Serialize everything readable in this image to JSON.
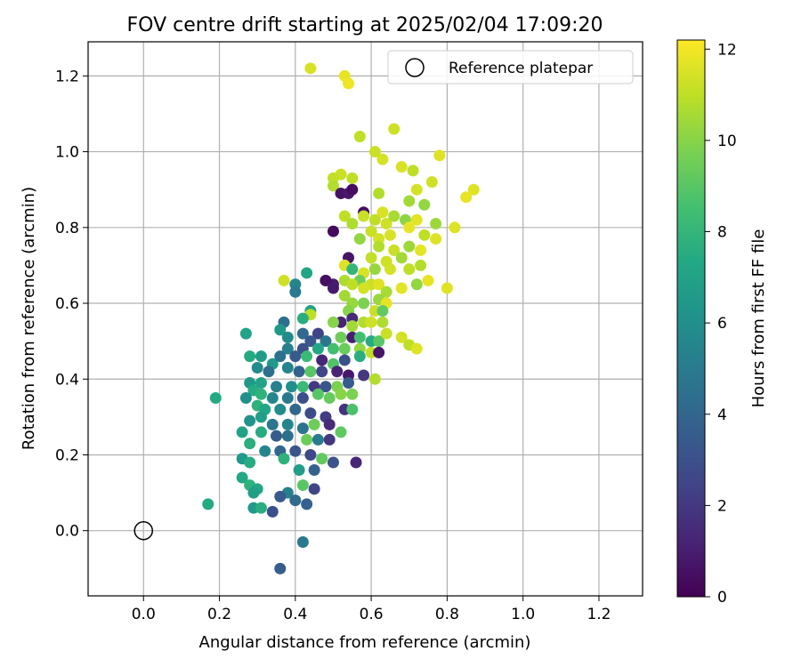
{
  "chart_data": {
    "type": "scatter",
    "title": "FOV centre drift starting at 2025/02/04 17:09:20",
    "xlabel": "Angular distance from reference (arcmin)",
    "ylabel": "Rotation from reference (arcmin)",
    "xlim": [
      -0.146,
      1.315
    ],
    "ylim": [
      -0.172,
      1.29
    ],
    "xticks": [
      "0.0",
      "0.2",
      "0.4",
      "0.6",
      "0.8",
      "1.0",
      "1.2"
    ],
    "yticks": [
      "0.0",
      "0.2",
      "0.4",
      "0.6",
      "0.8",
      "1.0",
      "1.2"
    ],
    "grid": true,
    "legend": {
      "placement": "top-right",
      "entries": [
        "Reference platepar"
      ]
    },
    "reference": {
      "x": 0.0,
      "y": 0.0
    },
    "colorbar": {
      "label": "Hours from first FF file",
      "range": [
        0,
        12.2
      ],
      "ticks": [
        "0",
        "2",
        "4",
        "6",
        "8",
        "10",
        "12"
      ],
      "colormap": "viridis"
    },
    "points": [
      [
        0.44,
        1.22,
        11.5
      ],
      [
        0.53,
        1.2,
        11.8
      ],
      [
        0.54,
        1.18,
        11.9
      ],
      [
        0.57,
        1.04,
        11.0
      ],
      [
        0.61,
        1.0,
        11.2
      ],
      [
        0.66,
        1.06,
        11.3
      ],
      [
        0.63,
        0.98,
        11.4
      ],
      [
        0.68,
        0.96,
        11.5
      ],
      [
        0.71,
        0.95,
        11.0
      ],
      [
        0.78,
        0.99,
        11.6
      ],
      [
        0.52,
        0.94,
        11.2
      ],
      [
        0.5,
        0.93,
        11.1
      ],
      [
        0.55,
        0.93,
        11.0
      ],
      [
        0.5,
        0.91,
        10.8
      ],
      [
        0.87,
        0.9,
        11.6
      ],
      [
        0.85,
        0.88,
        11.8
      ],
      [
        0.76,
        0.92,
        11.3
      ],
      [
        0.72,
        0.9,
        11.4
      ],
      [
        0.7,
        0.87,
        10.5
      ],
      [
        0.74,
        0.86,
        10.2
      ],
      [
        0.62,
        0.89,
        10.8
      ],
      [
        0.52,
        0.89,
        0.6
      ],
      [
        0.54,
        0.89,
        0.8
      ],
      [
        0.55,
        0.9,
        0.4
      ],
      [
        0.58,
        0.84,
        0.5
      ],
      [
        0.63,
        0.84,
        11.5
      ],
      [
        0.58,
        0.83,
        11.2
      ],
      [
        0.61,
        0.82,
        11.0
      ],
      [
        0.64,
        0.81,
        11.3
      ],
      [
        0.66,
        0.83,
        10.6
      ],
      [
        0.69,
        0.82,
        10.1
      ],
      [
        0.72,
        0.82,
        11.7
      ],
      [
        0.77,
        0.81,
        10.4
      ],
      [
        0.82,
        0.8,
        11.6
      ],
      [
        0.53,
        0.83,
        11.0
      ],
      [
        0.55,
        0.81,
        10.7
      ],
      [
        0.5,
        0.79,
        0.3
      ],
      [
        0.6,
        0.79,
        11.2
      ],
      [
        0.62,
        0.77,
        11.4
      ],
      [
        0.65,
        0.78,
        11.5
      ],
      [
        0.7,
        0.8,
        11.8
      ],
      [
        0.74,
        0.78,
        11.0
      ],
      [
        0.77,
        0.77,
        11.6
      ],
      [
        0.57,
        0.77,
        10.2
      ],
      [
        0.62,
        0.75,
        10.8
      ],
      [
        0.66,
        0.74,
        11.2
      ],
      [
        0.7,
        0.75,
        10.4
      ],
      [
        0.73,
        0.74,
        11.7
      ],
      [
        0.6,
        0.72,
        11.1
      ],
      [
        0.64,
        0.71,
        11.3
      ],
      [
        0.68,
        0.72,
        10.5
      ],
      [
        0.54,
        0.72,
        0.7
      ],
      [
        0.53,
        0.7,
        11.6
      ],
      [
        0.61,
        0.69,
        10.3
      ],
      [
        0.65,
        0.69,
        11.4
      ],
      [
        0.7,
        0.69,
        11.0
      ],
      [
        0.73,
        0.7,
        10.8
      ],
      [
        0.55,
        0.69,
        8.0
      ],
      [
        0.58,
        0.68,
        11.5
      ],
      [
        0.57,
        0.66,
        9.5
      ],
      [
        0.6,
        0.65,
        11.2
      ],
      [
        0.62,
        0.65,
        11.6
      ],
      [
        0.64,
        0.63,
        10.6
      ],
      [
        0.68,
        0.64,
        11.7
      ],
      [
        0.72,
        0.65,
        10.2
      ],
      [
        0.75,
        0.66,
        11.8
      ],
      [
        0.8,
        0.64,
        11.6
      ],
      [
        0.48,
        0.66,
        0.5
      ],
      [
        0.5,
        0.65,
        0.9
      ],
      [
        0.53,
        0.66,
        10.7
      ],
      [
        0.55,
        0.65,
        11.0
      ],
      [
        0.58,
        0.64,
        11.4
      ],
      [
        0.62,
        0.61,
        10.3
      ],
      [
        0.64,
        0.6,
        11.8
      ],
      [
        0.48,
        0.66,
        0.5
      ],
      [
        0.43,
        0.68,
        7.2
      ],
      [
        0.37,
        0.66,
        11.3
      ],
      [
        0.4,
        0.65,
        5.5
      ],
      [
        0.4,
        0.63,
        5.0
      ],
      [
        0.5,
        0.64,
        0.9
      ],
      [
        0.53,
        0.62,
        10.5
      ],
      [
        0.55,
        0.6,
        10.3
      ],
      [
        0.58,
        0.6,
        9.8
      ],
      [
        0.54,
        0.58,
        10.0
      ],
      [
        0.61,
        0.58,
        11.2
      ],
      [
        0.63,
        0.58,
        9.2
      ],
      [
        0.44,
        0.58,
        7.0
      ],
      [
        0.44,
        0.57,
        11.0
      ],
      [
        0.55,
        0.56,
        1.5
      ],
      [
        0.52,
        0.55,
        1.2
      ],
      [
        0.5,
        0.55,
        10.0
      ],
      [
        0.55,
        0.54,
        10.5
      ],
      [
        0.58,
        0.55,
        10.8
      ],
      [
        0.6,
        0.55,
        11.3
      ],
      [
        0.63,
        0.55,
        10.7
      ],
      [
        0.42,
        0.56,
        7.6
      ],
      [
        0.37,
        0.55,
        4.5
      ],
      [
        0.36,
        0.53,
        6.5
      ],
      [
        0.38,
        0.51,
        5.8
      ],
      [
        0.42,
        0.52,
        4.2
      ],
      [
        0.46,
        0.52,
        2.5
      ],
      [
        0.44,
        0.5,
        3.3
      ],
      [
        0.48,
        0.5,
        4.8
      ],
      [
        0.52,
        0.51,
        9.5
      ],
      [
        0.55,
        0.51,
        1.0
      ],
      [
        0.57,
        0.51,
        8.5
      ],
      [
        0.6,
        0.5,
        7.5
      ],
      [
        0.62,
        0.5,
        9.0
      ],
      [
        0.64,
        0.52,
        11.2
      ],
      [
        0.68,
        0.51,
        11.4
      ],
      [
        0.7,
        0.49,
        11.0
      ],
      [
        0.72,
        0.48,
        11.6
      ],
      [
        0.38,
        0.48,
        5.2
      ],
      [
        0.42,
        0.48,
        3.0
      ],
      [
        0.46,
        0.48,
        7.2
      ],
      [
        0.5,
        0.48,
        8.5
      ],
      [
        0.53,
        0.48,
        9.4
      ],
      [
        0.57,
        0.48,
        10.2
      ],
      [
        0.6,
        0.47,
        11.0
      ],
      [
        0.62,
        0.47,
        0.7
      ],
      [
        0.27,
        0.52,
        7.0
      ],
      [
        0.31,
        0.46,
        6.7
      ],
      [
        0.34,
        0.44,
        6.5
      ],
      [
        0.28,
        0.46,
        7.4
      ],
      [
        0.36,
        0.46,
        4.5
      ],
      [
        0.4,
        0.46,
        3.5
      ],
      [
        0.43,
        0.46,
        8.2
      ],
      [
        0.47,
        0.45,
        1.3
      ],
      [
        0.5,
        0.44,
        8.8
      ],
      [
        0.53,
        0.45,
        3.0
      ],
      [
        0.57,
        0.46,
        7.6
      ],
      [
        0.3,
        0.43,
        5.8
      ],
      [
        0.33,
        0.42,
        4.5
      ],
      [
        0.38,
        0.43,
        5.5
      ],
      [
        0.41,
        0.42,
        3.8
      ],
      [
        0.44,
        0.42,
        9.0
      ],
      [
        0.47,
        0.42,
        2.5
      ],
      [
        0.51,
        0.42,
        1.2
      ],
      [
        0.54,
        0.41,
        0.8
      ],
      [
        0.58,
        0.41,
        2.0
      ],
      [
        0.61,
        0.4,
        10.8
      ],
      [
        0.28,
        0.39,
        6.5
      ],
      [
        0.31,
        0.39,
        7.0
      ],
      [
        0.35,
        0.38,
        5.2
      ],
      [
        0.39,
        0.38,
        6.0
      ],
      [
        0.42,
        0.38,
        8.2
      ],
      [
        0.45,
        0.38,
        2.0
      ],
      [
        0.48,
        0.38,
        3.2
      ],
      [
        0.51,
        0.38,
        9.8
      ],
      [
        0.54,
        0.39,
        3.5
      ],
      [
        0.29,
        0.37,
        7.5
      ],
      [
        0.31,
        0.36,
        7.8
      ],
      [
        0.27,
        0.35,
        6.0
      ],
      [
        0.34,
        0.35,
        5.5
      ],
      [
        0.38,
        0.35,
        5.0
      ],
      [
        0.42,
        0.35,
        3.0
      ],
      [
        0.46,
        0.36,
        9.0
      ],
      [
        0.49,
        0.35,
        9.3
      ],
      [
        0.52,
        0.36,
        10.0
      ],
      [
        0.55,
        0.36,
        9.8
      ],
      [
        0.19,
        0.35,
        7.4
      ],
      [
        0.3,
        0.33,
        7.8
      ],
      [
        0.32,
        0.32,
        7.2
      ],
      [
        0.36,
        0.32,
        5.8
      ],
      [
        0.4,
        0.32,
        4.0
      ],
      [
        0.44,
        0.31,
        2.8
      ],
      [
        0.48,
        0.3,
        2.2
      ],
      [
        0.53,
        0.32,
        1.8
      ],
      [
        0.55,
        0.32,
        8.7
      ],
      [
        0.31,
        0.3,
        6.8
      ],
      [
        0.28,
        0.29,
        6.2
      ],
      [
        0.34,
        0.28,
        4.8
      ],
      [
        0.38,
        0.28,
        5.5
      ],
      [
        0.42,
        0.27,
        4.6
      ],
      [
        0.45,
        0.28,
        9.5
      ],
      [
        0.49,
        0.28,
        1.5
      ],
      [
        0.52,
        0.26,
        9.2
      ],
      [
        0.26,
        0.26,
        7.0
      ],
      [
        0.31,
        0.26,
        7.5
      ],
      [
        0.35,
        0.25,
        3.5
      ],
      [
        0.38,
        0.25,
        4.5
      ],
      [
        0.43,
        0.24,
        9.4
      ],
      [
        0.46,
        0.24,
        5.0
      ],
      [
        0.49,
        0.24,
        2.0
      ],
      [
        0.28,
        0.23,
        7.6
      ],
      [
        0.32,
        0.21,
        5.5
      ],
      [
        0.36,
        0.21,
        4.0
      ],
      [
        0.4,
        0.21,
        3.2
      ],
      [
        0.44,
        0.2,
        2.6
      ],
      [
        0.47,
        0.19,
        9.2
      ],
      [
        0.5,
        0.18,
        3.2
      ],
      [
        0.56,
        0.18,
        1.3
      ],
      [
        0.26,
        0.19,
        6.5
      ],
      [
        0.28,
        0.18,
        7.5
      ],
      [
        0.37,
        0.19,
        7.8
      ],
      [
        0.41,
        0.16,
        6.7
      ],
      [
        0.45,
        0.16,
        3.8
      ],
      [
        0.26,
        0.14,
        7.3
      ],
      [
        0.28,
        0.12,
        7.8
      ],
      [
        0.3,
        0.11,
        7.2
      ],
      [
        0.29,
        0.1,
        6.8
      ],
      [
        0.38,
        0.1,
        5.3
      ],
      [
        0.42,
        0.12,
        9.0
      ],
      [
        0.45,
        0.11,
        2.5
      ],
      [
        0.36,
        0.09,
        3.5
      ],
      [
        0.4,
        0.08,
        4.2
      ],
      [
        0.43,
        0.07,
        3.8
      ],
      [
        0.17,
        0.07,
        7.4
      ],
      [
        0.29,
        0.06,
        6.6
      ],
      [
        0.31,
        0.06,
        7.6
      ],
      [
        0.34,
        0.05,
        3.0
      ],
      [
        0.42,
        -0.03,
        5.0
      ],
      [
        0.36,
        -0.1,
        3.6
      ]
    ]
  }
}
